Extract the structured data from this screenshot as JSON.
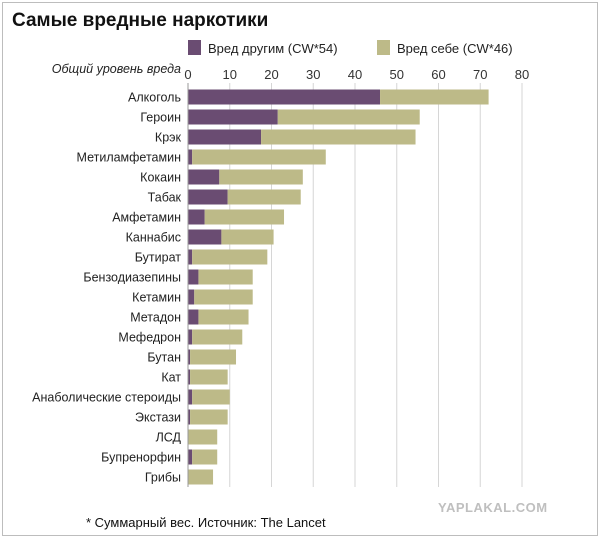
{
  "chart_data": {
    "type": "bar",
    "orientation": "horizontal",
    "stacked": true,
    "title": "Самые вредные наркотики",
    "xlabel": "Общий уровень вреда",
    "xlim": [
      0,
      80
    ],
    "xticks": [
      0,
      10,
      20,
      30,
      40,
      50,
      60,
      70,
      80
    ],
    "grid": true,
    "legend_position": "top",
    "categories": [
      "Алкоголь",
      "Героин",
      "Крэк",
      "Метиламфетамин",
      "Кокаин",
      "Табак",
      "Амфетамин",
      "Каннабис",
      "Бутират",
      "Бензодиазепины",
      "Кетамин",
      "Метадон",
      "Мефедрон",
      "Бутан",
      "Кат",
      "Анаболические стероиды",
      "Экстази",
      "ЛСД",
      "Бупренорфин",
      "Грибы"
    ],
    "series": [
      {
        "name": "Вред другим (CW*54)",
        "color": "#6a4c72",
        "values": [
          46,
          21.5,
          17.5,
          1,
          7.5,
          9.5,
          4,
          8,
          1,
          2.5,
          1.5,
          2.5,
          1,
          0.5,
          0.5,
          1,
          0.5,
          0,
          1,
          0
        ]
      },
      {
        "name": "Вред себе (CW*46)",
        "color": "#bdba88",
        "values": [
          26,
          34,
          37,
          32,
          20,
          17.5,
          19,
          12.5,
          18,
          13,
          14,
          12,
          12,
          11,
          9,
          9,
          9,
          7,
          6,
          6
        ]
      }
    ]
  },
  "footnote": "* Суммарный вес. Источник: The Lancet",
  "watermark": "YAPLAKAL.COM"
}
